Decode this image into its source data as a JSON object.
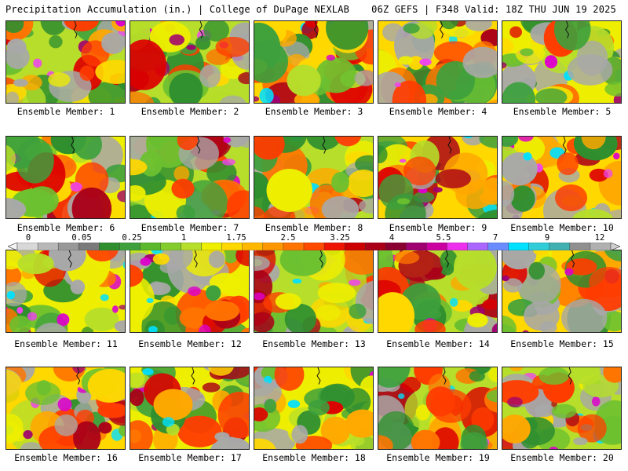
{
  "header": {
    "left_title": "Precipitation Accumulation (in.) | College of DuPage NEXLAB",
    "right_title": "06Z GEFS | F348 Valid: 18Z THU JUN 19 2025"
  },
  "colorbar": {
    "tick_labels": [
      "0",
      "0.05",
      "0.25",
      "1",
      "1.75",
      "2.5",
      "3.25",
      "4",
      "5.5",
      "7",
      "9",
      "12"
    ],
    "colors": [
      "#f4f4f4",
      "#d8d8d8",
      "#b8b8b8",
      "#989898",
      "#7a7a7a",
      "#2f8f2f",
      "#3da03d",
      "#5cb82c",
      "#84cc2e",
      "#b6de2a",
      "#eeee00",
      "#ffd800",
      "#ffb800",
      "#ff9800",
      "#ff7400",
      "#ff4a00",
      "#ee1400",
      "#cc0000",
      "#aa0018",
      "#8a0030",
      "#a00070",
      "#cc00a0",
      "#ee30ee",
      "#aa66ff",
      "#6a8cff",
      "#00e0ff",
      "#30ccd8",
      "#40b0b0",
      "#909090",
      "#b0b0b0",
      "#d0d0d0"
    ]
  },
  "members": [
    {
      "label": "Ensemble Member: 1"
    },
    {
      "label": "Ensemble Member: 2"
    },
    {
      "label": "Ensemble Member: 3"
    },
    {
      "label": "Ensemble Member: 4"
    },
    {
      "label": "Ensemble Member: 5"
    },
    {
      "label": "Ensemble Member: 6"
    },
    {
      "label": "Ensemble Member: 7"
    },
    {
      "label": "Ensemble Member: 8"
    },
    {
      "label": "Ensemble Member: 9"
    },
    {
      "label": "Ensemble Member: 10"
    },
    {
      "label": "Ensemble Member: 11"
    },
    {
      "label": "Ensemble Member: 12"
    },
    {
      "label": "Ensemble Member: 13"
    },
    {
      "label": "Ensemble Member: 14"
    },
    {
      "label": "Ensemble Member: 15"
    },
    {
      "label": "Ensemble Member: 16"
    },
    {
      "label": "Ensemble Member: 17"
    },
    {
      "label": "Ensemble Member: 18"
    },
    {
      "label": "Ensemble Member: 19"
    },
    {
      "label": "Ensemble Member: 20"
    }
  ]
}
